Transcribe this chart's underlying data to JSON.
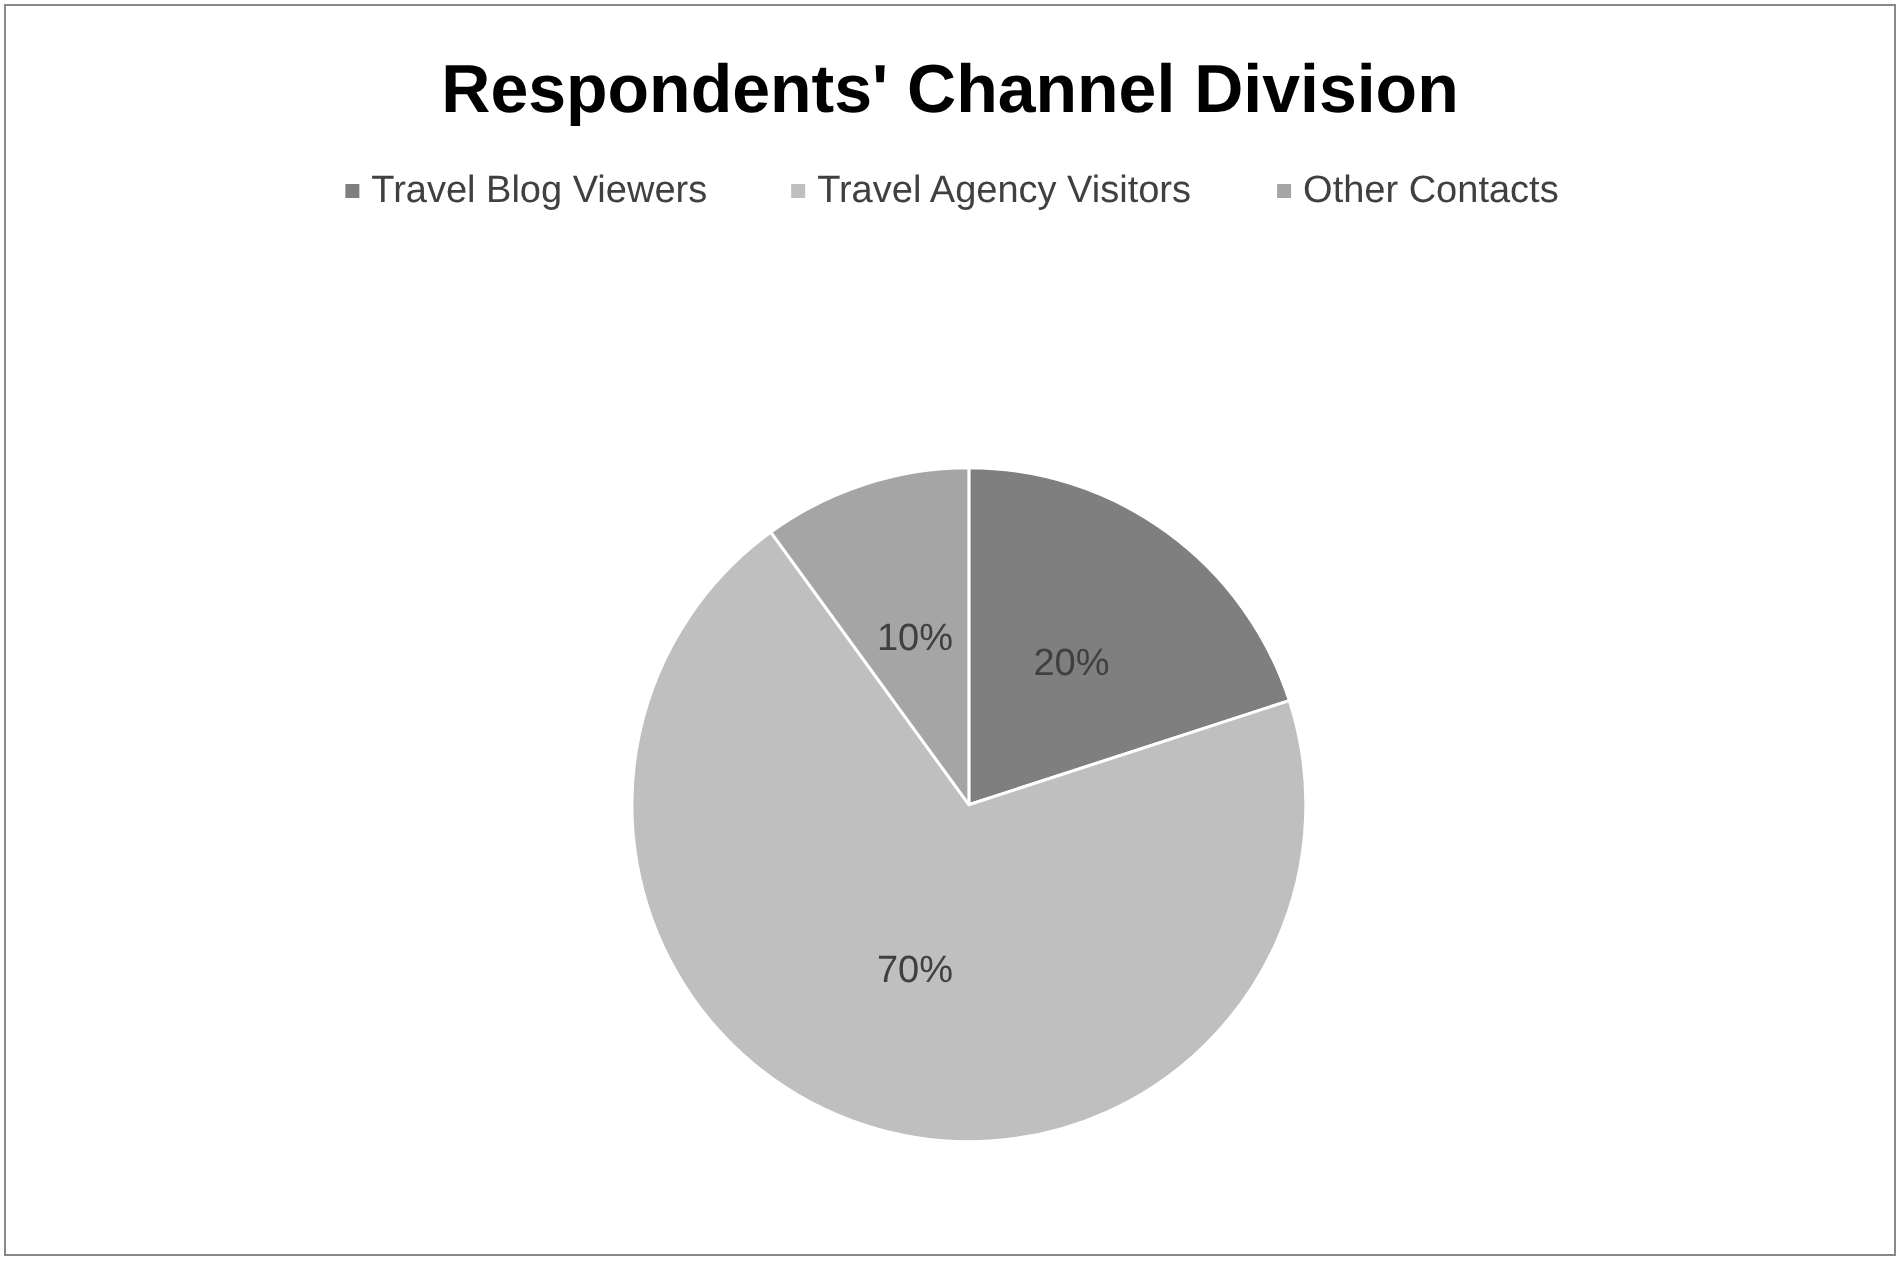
{
  "chart_data": {
    "type": "pie",
    "title": "Respondents' Channel Division",
    "categories": [
      "Travel Blog Viewers",
      "Travel Agency Visitors",
      "Other Contacts"
    ],
    "values": [
      20,
      70,
      10
    ],
    "colors": [
      "#7f7f7f",
      "#bfbfbf",
      "#a5a5a5"
    ],
    "value_labels": [
      "20%",
      "70%",
      "10%"
    ],
    "legend": "top"
  }
}
